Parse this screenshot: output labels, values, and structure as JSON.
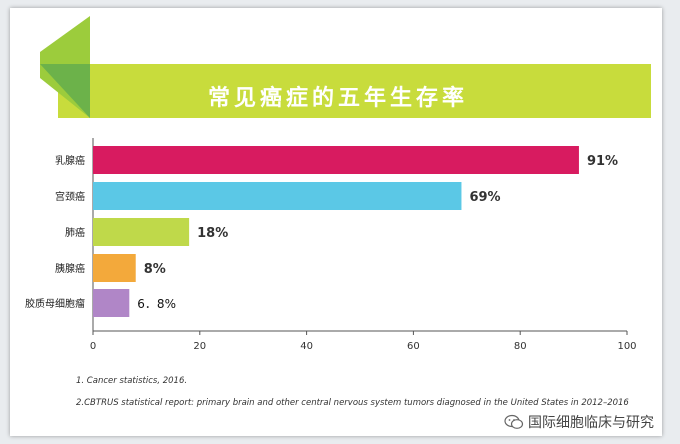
{
  "title": "常见癌症的五年生存率",
  "colors": {
    "banner_green": "#c8dc3c",
    "arrow_green_light": "#9ccc3c",
    "arrow_green_dark": "#6cb24a"
  },
  "chart_data": {
    "type": "bar",
    "orientation": "horizontal",
    "title": "常见癌症的五年生存率",
    "categories": [
      "乳腺癌",
      "宫颈癌",
      "肺癌",
      "胰腺癌",
      "胶质母细胞瘤"
    ],
    "values": [
      91,
      69,
      18,
      8,
      6.8
    ],
    "value_labels": [
      "91%",
      "69%",
      "18%",
      "8%",
      "6．8%"
    ],
    "bar_colors": [
      "#d81b60",
      "#5bc8e6",
      "#bfd94a",
      "#f3a93b",
      "#b086c7"
    ],
    "xlim": [
      0,
      100
    ],
    "xticks": [
      0,
      20,
      40,
      60,
      80,
      100
    ],
    "xlabel": "",
    "ylabel": "",
    "grid": false
  },
  "footnotes": [
    "1. Cancer statistics, 2016.",
    "2.CBTRUS statistical report: primary brain and other central nervous system tumors diagnosed in the United States in 2012–2016"
  ],
  "watermark": {
    "text": "国际细胞临床与研究",
    "icon": "wechat-icon"
  }
}
